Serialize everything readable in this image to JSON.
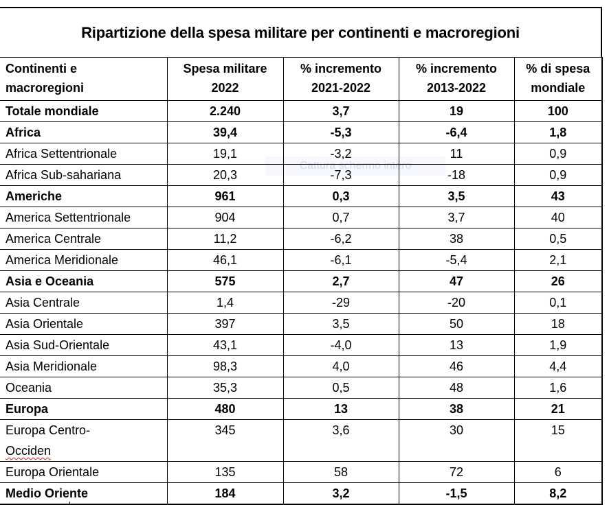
{
  "title": "Ripartizione della spesa militare per continenti e macroregioni",
  "columns": [
    "Continenti e macroregioni",
    "Spesa militare 2022",
    "% incremento 2021-2022",
    "% incremento 2013-2022",
    "% di spesa mondiale"
  ],
  "header_lines": [
    [
      "Continenti e",
      "macroregioni"
    ],
    [
      "Spesa militare",
      "2022"
    ],
    [
      "% incremento",
      "2021-2022"
    ],
    [
      "% incremento",
      "2013-2022"
    ],
    [
      "% di spesa",
      "mondiale"
    ]
  ],
  "rows": [
    {
      "bold": true,
      "cells": [
        "Totale mondiale",
        "2.240",
        "3,7",
        "19",
        "100"
      ]
    },
    {
      "bold": true,
      "cells": [
        "Africa",
        "39,4",
        "-5,3",
        "-6,4",
        "1,8"
      ]
    },
    {
      "bold": false,
      "cells": [
        "Africa Settentrionale",
        "19,1",
        "-3,2",
        "11",
        "0,9"
      ]
    },
    {
      "bold": false,
      "cells": [
        "Africa Sub-sahariana",
        "20,3",
        "-7,3",
        "-18",
        "0,9"
      ]
    },
    {
      "bold": true,
      "cells": [
        "Americhe",
        "961",
        "0,3",
        "3,5",
        "43"
      ]
    },
    {
      "bold": false,
      "cells": [
        "America Settentrionale",
        "904",
        "0,7",
        "3,7",
        "40"
      ]
    },
    {
      "bold": false,
      "cells": [
        "America Centrale",
        "11,2",
        "-6,2",
        "38",
        "0,5"
      ]
    },
    {
      "bold": false,
      "cells": [
        "America Meridionale",
        "46,1",
        "-6,1",
        "-5,4",
        "2,1"
      ]
    },
    {
      "bold": true,
      "cells": [
        "Asia e Oceania",
        "575",
        "2,7",
        "47",
        "26"
      ]
    },
    {
      "bold": false,
      "cells": [
        "Asia Centrale",
        "1,4",
        "-29",
        "-20",
        "0,1"
      ]
    },
    {
      "bold": false,
      "cells": [
        "Asia Orientale",
        "397",
        "3,5",
        "50",
        "18"
      ]
    },
    {
      "bold": false,
      "cells": [
        "Asia Sud-Orientale",
        "43,1",
        "-4,0",
        "13",
        "1,9"
      ]
    },
    {
      "bold": false,
      "cells": [
        "Asia Meridionale",
        "98,3",
        "4,0",
        "46",
        "4,4"
      ]
    },
    {
      "bold": false,
      "cells": [
        "Oceania",
        "35,3",
        "0,5",
        "48",
        "1,6"
      ]
    },
    {
      "bold": true,
      "cells": [
        "Europa",
        "480",
        "13",
        "38",
        "21"
      ]
    },
    {
      "bold": false,
      "tall": true,
      "first_lines": [
        "Europa Centro-",
        "Occiden"
      ],
      "cells": [
        "Europa Centro-Occiden",
        "345",
        "3,6",
        "30",
        "15"
      ]
    },
    {
      "bold": false,
      "cells": [
        "Europa Orientale",
        "135",
        "58",
        "72",
        "6"
      ]
    },
    {
      "bold": true,
      "cells": [
        "Medio Oriente",
        "184",
        "3,2",
        "-1,5",
        "8,2"
      ]
    }
  ],
  "overlay_tooltip": "Cattura schermo intero"
}
